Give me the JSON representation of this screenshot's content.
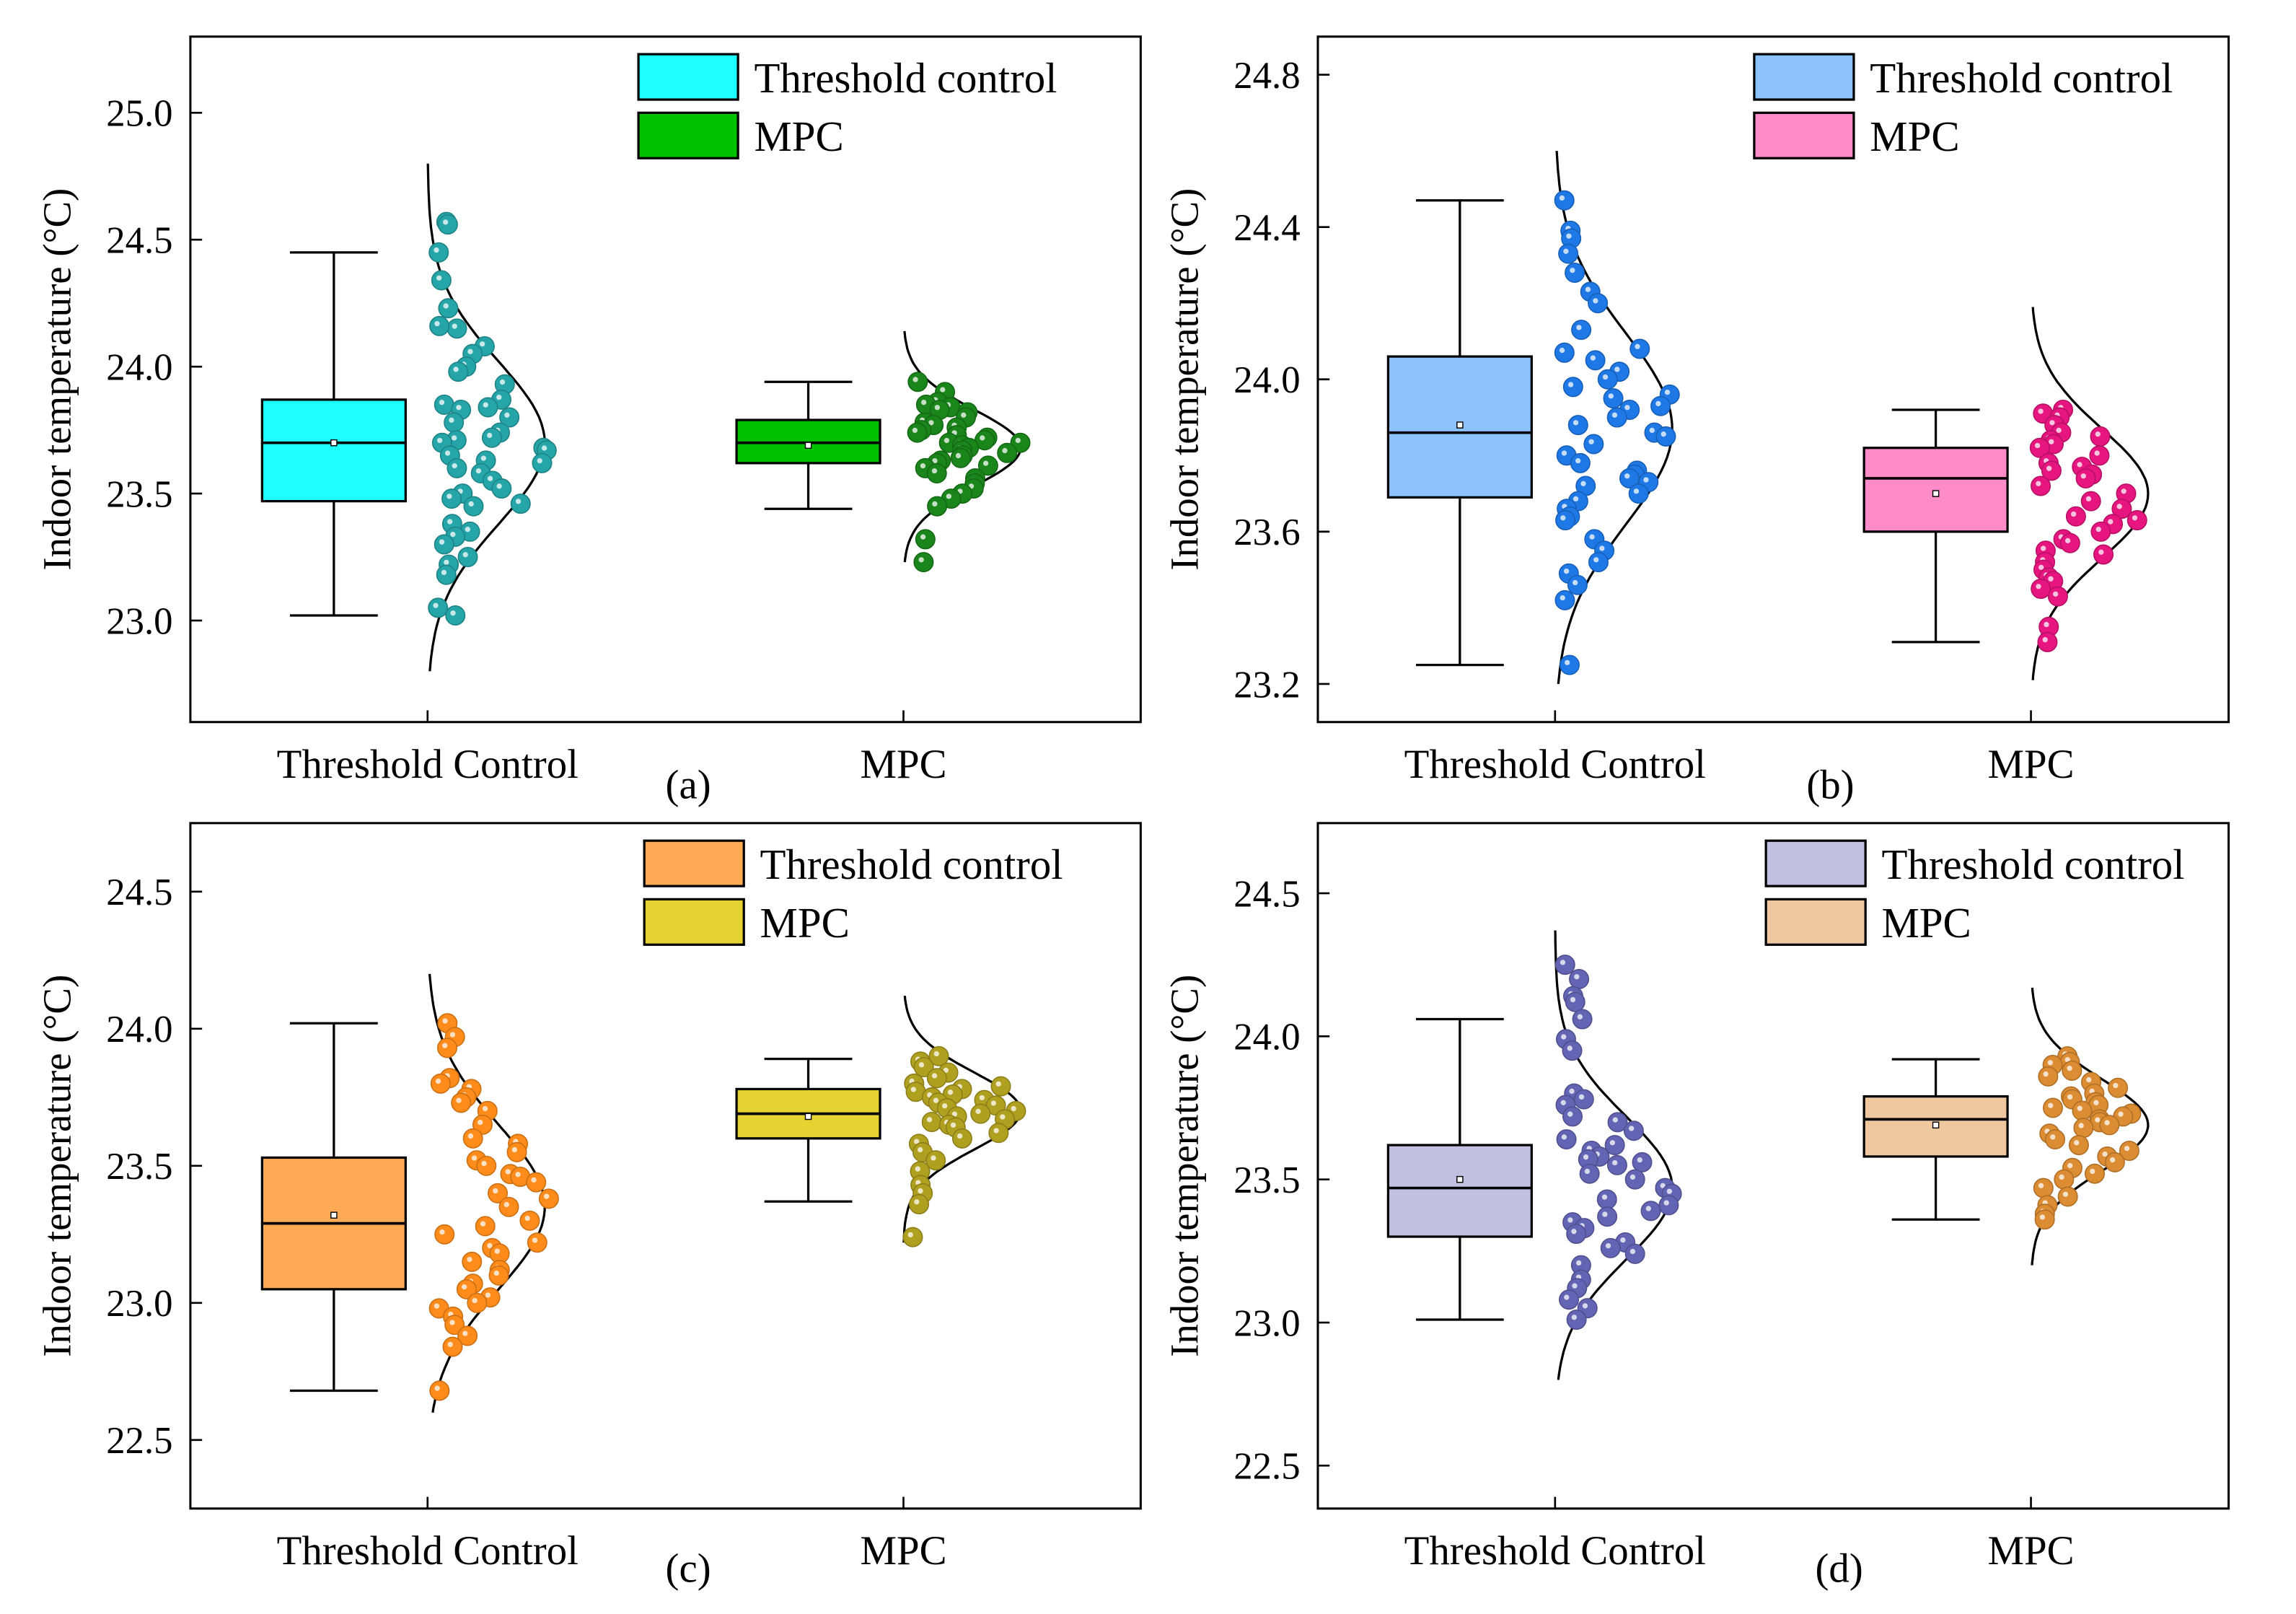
{
  "chart_data": [
    {
      "type": "box-raincloud",
      "caption": "(a)",
      "ylabel": "Indoor temperature (°C)",
      "ylim": [
        22.6,
        25.3
      ],
      "yticks": [
        23.0,
        23.5,
        24.0,
        24.5,
        25.0
      ],
      "ytick_labels": [
        "23.0",
        "23.5",
        "24.0",
        "24.5",
        "25.0"
      ],
      "categories": [
        "Threshold Control",
        "MPC"
      ],
      "legend": [
        "Threshold control",
        "MPC"
      ],
      "legend_position": "top-right",
      "series": [
        {
          "name": "Threshold control",
          "box_color": "#1EFFFF",
          "point_color": "#25A5A8",
          "whisker_low": 23.02,
          "q1": 23.47,
          "median": 23.7,
          "q3": 23.87,
          "whisker_high": 24.45,
          "mean": 23.7,
          "curve": {
            "mean": 23.7,
            "sd": 0.32,
            "range": [
              22.8,
              24.8
            ]
          },
          "points": [
            24.57,
            24.56,
            24.45,
            24.34,
            24.23,
            24.15,
            24.16,
            24.08,
            24.05,
            24.0,
            23.98,
            23.93,
            23.87,
            23.85,
            23.84,
            23.83,
            23.8,
            23.78,
            23.74,
            23.72,
            23.71,
            23.7,
            23.68,
            23.67,
            23.65,
            23.63,
            23.62,
            23.6,
            23.58,
            23.55,
            23.52,
            23.5,
            23.48,
            23.46,
            23.45,
            23.38,
            23.35,
            23.33,
            23.3,
            23.25,
            23.22,
            23.18,
            23.05,
            23.02
          ]
        },
        {
          "name": "MPC",
          "box_color": "#00C000",
          "point_color": "#1A851A",
          "whisker_low": 23.44,
          "q1": 23.62,
          "median": 23.7,
          "q3": 23.79,
          "whisker_high": 23.94,
          "mean": 23.69,
          "curve": {
            "mean": 23.68,
            "sd": 0.15,
            "range": [
              23.23,
              24.14
            ]
          },
          "points": [
            23.94,
            23.9,
            23.86,
            23.85,
            23.84,
            23.83,
            23.82,
            23.8,
            23.78,
            23.77,
            23.76,
            23.75,
            23.74,
            23.73,
            23.72,
            23.71,
            23.7,
            23.7,
            23.69,
            23.68,
            23.67,
            23.66,
            23.65,
            23.64,
            23.63,
            23.62,
            23.61,
            23.6,
            23.58,
            23.56,
            23.54,
            23.52,
            23.5,
            23.48,
            23.45,
            23.32,
            23.23
          ]
        }
      ]
    },
    {
      "type": "box-raincloud",
      "caption": "(b)",
      "ylabel": "Indoor temperature (°C)",
      "ylim": [
        23.1,
        24.9
      ],
      "yticks": [
        23.2,
        23.6,
        24.0,
        24.4,
        24.8
      ],
      "ytick_labels": [
        "23.2",
        "23.6",
        "24.0",
        "24.4",
        "24.8"
      ],
      "categories": [
        "Threshold Control",
        "MPC"
      ],
      "legend": [
        "Threshold control",
        "MPC"
      ],
      "legend_position": "top-right",
      "series": [
        {
          "name": "Threshold control",
          "box_color": "#8CC3FF",
          "point_color": "#1E78E6",
          "whisker_low": 23.25,
          "q1": 23.69,
          "median": 23.86,
          "q3": 24.06,
          "whisker_high": 24.47,
          "mean": 23.88,
          "curve": {
            "mean": 23.87,
            "sd": 0.25,
            "range": [
              23.2,
              24.6
            ]
          },
          "points": [
            24.47,
            24.39,
            24.37,
            24.33,
            24.28,
            24.23,
            24.2,
            24.13,
            24.08,
            24.07,
            24.05,
            24.02,
            24.0,
            23.98,
            23.96,
            23.95,
            23.93,
            23.92,
            23.9,
            23.88,
            23.86,
            23.85,
            23.83,
            23.8,
            23.78,
            23.76,
            23.75,
            23.74,
            23.73,
            23.72,
            23.7,
            23.68,
            23.66,
            23.64,
            23.63,
            23.58,
            23.55,
            23.52,
            23.49,
            23.46,
            23.42,
            23.25
          ]
        },
        {
          "name": "MPC",
          "box_color": "#FF8CC8",
          "point_color": "#E6157F",
          "whisker_low": 23.31,
          "q1": 23.6,
          "median": 23.74,
          "q3": 23.82,
          "whisker_high": 23.92,
          "mean": 23.7,
          "curve": {
            "mean": 23.7,
            "sd": 0.17,
            "range": [
              23.21,
              24.19
            ]
          },
          "points": [
            23.92,
            23.91,
            23.9,
            23.88,
            23.86,
            23.85,
            23.84,
            23.83,
            23.82,
            23.8,
            23.78,
            23.77,
            23.76,
            23.75,
            23.74,
            23.72,
            23.7,
            23.68,
            23.66,
            23.64,
            23.63,
            23.62,
            23.6,
            23.58,
            23.57,
            23.55,
            23.54,
            23.52,
            23.5,
            23.48,
            23.47,
            23.45,
            23.43,
            23.35,
            23.31
          ]
        }
      ]
    },
    {
      "type": "box-raincloud",
      "caption": "(c)",
      "ylabel": "Indoor temperature (°C)",
      "ylim": [
        22.25,
        24.75
      ],
      "yticks": [
        22.5,
        23.0,
        23.5,
        24.0,
        24.5
      ],
      "ytick_labels": [
        "22.5",
        "23.0",
        "23.5",
        "24.0",
        "24.5"
      ],
      "categories": [
        "Threshold Control",
        "MPC"
      ],
      "legend": [
        "Threshold control",
        "MPC"
      ],
      "legend_position": "top-right",
      "series": [
        {
          "name": "Threshold control",
          "box_color": "#FFAA55",
          "point_color": "#FF8C1A",
          "whisker_low": 22.68,
          "q1": 23.05,
          "median": 23.29,
          "q3": 23.53,
          "whisker_high": 24.02,
          "mean": 23.32,
          "curve": {
            "mean": 23.35,
            "sd": 0.3,
            "range": [
              22.6,
              24.2
            ]
          },
          "points": [
            24.02,
            23.97,
            23.93,
            23.82,
            23.8,
            23.78,
            23.75,
            23.73,
            23.7,
            23.65,
            23.6,
            23.58,
            23.55,
            23.52,
            23.5,
            23.47,
            23.46,
            23.44,
            23.4,
            23.38,
            23.35,
            23.3,
            23.28,
            23.25,
            23.22,
            23.2,
            23.18,
            23.15,
            23.12,
            23.1,
            23.07,
            23.05,
            23.02,
            23.0,
            22.98,
            22.95,
            22.92,
            22.88,
            22.84,
            22.68
          ]
        },
        {
          "name": "MPC",
          "box_color": "#E6D230",
          "point_color": "#B0A020",
          "whisker_low": 23.37,
          "q1": 23.6,
          "median": 23.69,
          "q3": 23.78,
          "whisker_high": 23.89,
          "mean": 23.68,
          "curve": {
            "mean": 23.7,
            "sd": 0.14,
            "range": [
              23.22,
              24.12
            ]
          },
          "points": [
            23.9,
            23.88,
            23.86,
            23.84,
            23.82,
            23.8,
            23.79,
            23.78,
            23.77,
            23.76,
            23.75,
            23.74,
            23.73,
            23.72,
            23.71,
            23.7,
            23.69,
            23.68,
            23.67,
            23.66,
            23.65,
            23.64,
            23.62,
            23.6,
            23.58,
            23.55,
            23.52,
            23.48,
            23.43,
            23.4,
            23.36,
            23.24
          ]
        }
      ]
    },
    {
      "type": "box-raincloud",
      "caption": "(d)",
      "ylabel": "Indoor temperature (°C)",
      "ylim": [
        22.35,
        24.745
      ],
      "yticks": [
        22.5,
        23.0,
        23.5,
        24.0,
        24.5
      ],
      "ytick_labels": [
        "22.5",
        "23.0",
        "23.5",
        "24.0",
        "24.5"
      ],
      "categories": [
        "Threshold Control",
        "MPC"
      ],
      "legend": [
        "Threshold control",
        "MPC"
      ],
      "legend_position": "top-right",
      "series": [
        {
          "name": "Threshold control",
          "box_color": "#C0C0E0",
          "point_color": "#6464B4",
          "whisker_low": 23.01,
          "q1": 23.3,
          "median": 23.47,
          "q3": 23.62,
          "whisker_high": 24.06,
          "mean": 23.5,
          "curve": {
            "mean": 23.47,
            "sd": 0.25,
            "range": [
              22.8,
              24.37
            ]
          },
          "points": [
            24.25,
            24.2,
            24.14,
            24.12,
            24.06,
            23.99,
            23.95,
            23.8,
            23.78,
            23.76,
            23.72,
            23.7,
            23.67,
            23.64,
            23.62,
            23.6,
            23.58,
            23.57,
            23.56,
            23.55,
            23.52,
            23.5,
            23.47,
            23.45,
            23.43,
            23.41,
            23.39,
            23.37,
            23.35,
            23.33,
            23.31,
            23.28,
            23.26,
            23.24,
            23.2,
            23.15,
            23.12,
            23.08,
            23.05,
            23.01
          ]
        },
        {
          "name": "MPC",
          "box_color": "#F0C8A0",
          "point_color": "#DC8C32",
          "whisker_low": 23.36,
          "q1": 23.58,
          "median": 23.71,
          "q3": 23.79,
          "whisker_high": 23.92,
          "mean": 23.69,
          "curve": {
            "mean": 23.69,
            "sd": 0.16,
            "range": [
              23.2,
              24.17
            ]
          },
          "points": [
            23.93,
            23.91,
            23.9,
            23.88,
            23.86,
            23.84,
            23.82,
            23.8,
            23.79,
            23.78,
            23.77,
            23.76,
            23.75,
            23.74,
            23.73,
            23.72,
            23.71,
            23.7,
            23.69,
            23.68,
            23.66,
            23.64,
            23.62,
            23.6,
            23.58,
            23.56,
            23.54,
            23.52,
            23.5,
            23.47,
            23.44,
            23.41,
            23.38,
            23.36
          ]
        }
      ]
    }
  ]
}
